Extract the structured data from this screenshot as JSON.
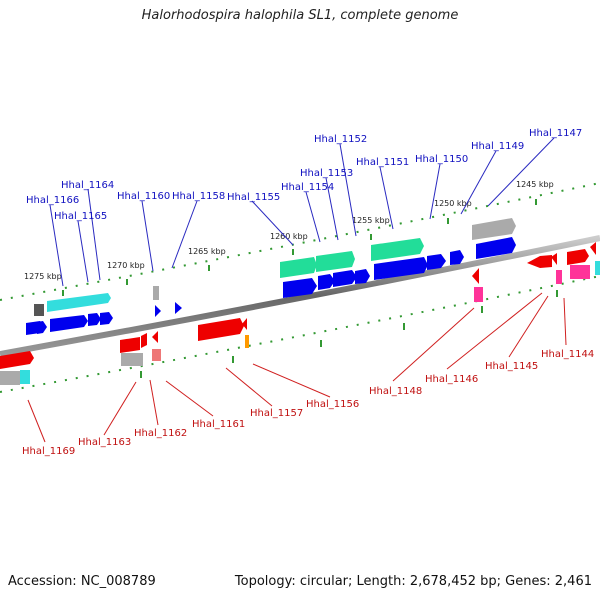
{
  "title": "Halorhodospira halophila SL1, complete genome",
  "footer": {
    "accession": "Accession: NC_008789",
    "topology": "Topology: circular; Length: 2,678,452 bp; Genes: 2,461"
  },
  "kbp_labels": [
    "1275 kbp",
    "1270 kbp",
    "1265 kbp",
    "1260 kbp",
    "1255 kbp",
    "1250 kbp",
    "1245 kbp"
  ],
  "forward_genes": [
    "Hhal_1166",
    "Hhal_1165",
    "Hhal_1164",
    "Hhal_1160",
    "Hhal_1158",
    "Hhal_1155",
    "Hhal_1154",
    "Hhal_1153",
    "Hhal_1152",
    "Hhal_1151",
    "Hhal_1150",
    "Hhal_1149",
    "Hhal_1147"
  ],
  "reverse_genes": [
    "Hhal_1169",
    "Hhal_1163",
    "Hhal_1162",
    "Hhal_1161",
    "Hhal_1157",
    "Hhal_1156",
    "Hhal_1148",
    "Hhal_1146",
    "Hhal_1145",
    "Hhal_1144"
  ],
  "colors": {
    "forward_label": "#1010c0",
    "reverse_label": "#c01010",
    "cds_forward": "#0000ee",
    "cds_reverse": "#ee0000",
    "gene_forward": "#22dd99",
    "gene_cyan": "#33dddd",
    "gene_pink": "#ff3399",
    "gene_grey": "#aaaaaa",
    "gene_orange": "#ff9900",
    "backbone": "#777777",
    "tick": "#339933"
  }
}
